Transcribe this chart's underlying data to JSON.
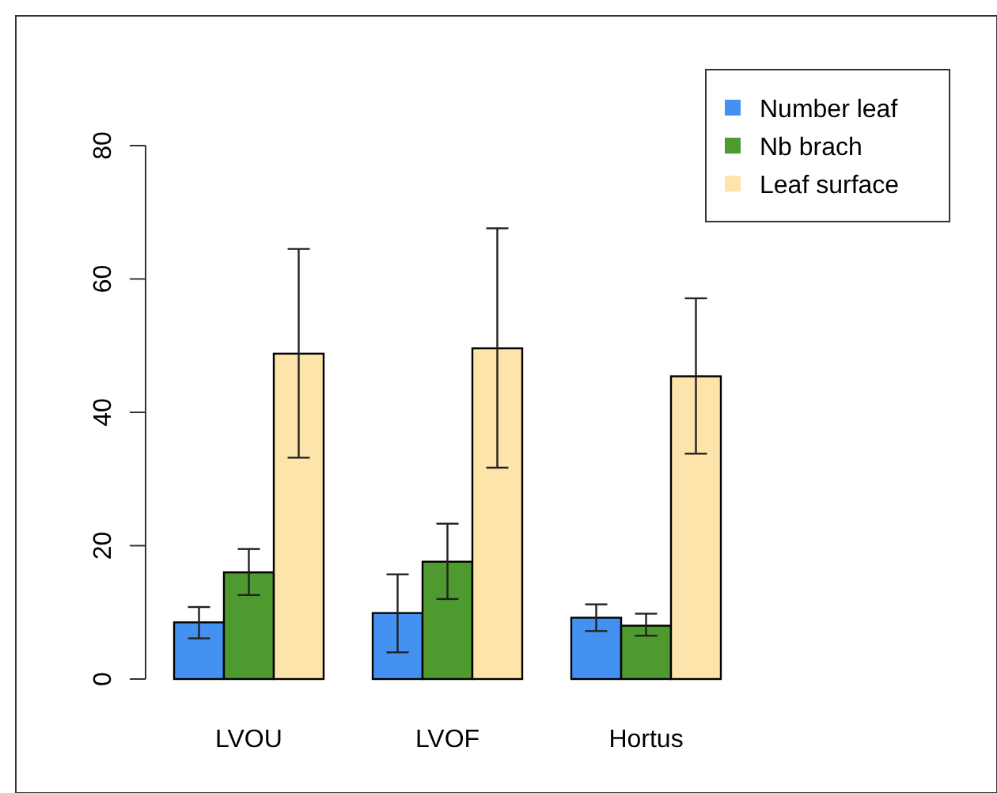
{
  "chart_data": {
    "type": "bar",
    "categories": [
      "LVOU",
      "LVOF",
      "Hortus"
    ],
    "series": [
      {
        "name": "Number leaf",
        "color": "#4391f0",
        "values": [
          8.5,
          9.9,
          9.2
        ],
        "errors": [
          [
            6.1,
            10.8
          ],
          [
            4.0,
            15.7
          ],
          [
            7.2,
            11.2
          ]
        ]
      },
      {
        "name": "Nb brach",
        "color": "#4f9a2f",
        "values": [
          16.0,
          17.6,
          8.0
        ],
        "errors": [
          [
            12.6,
            19.5
          ],
          [
            12.0,
            23.3
          ],
          [
            6.5,
            9.8
          ]
        ]
      },
      {
        "name": "Leaf surface",
        "color": "#fde4ab",
        "values": [
          48.8,
          49.6,
          45.4
        ],
        "errors": [
          [
            33.2,
            64.5
          ],
          [
            31.7,
            67.6
          ],
          [
            33.8,
            57.1
          ]
        ]
      }
    ],
    "ylim": [
      0,
      80
    ],
    "yticks": [
      0,
      20,
      40,
      60,
      80
    ],
    "legend": "top right"
  }
}
